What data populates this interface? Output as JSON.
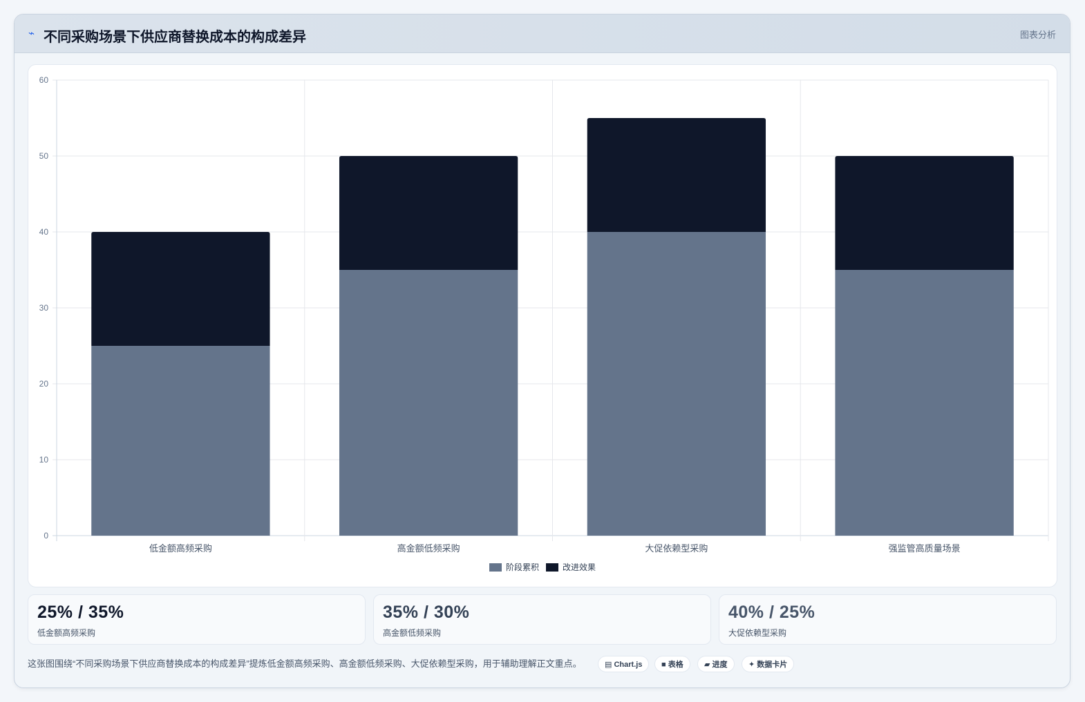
{
  "header": {
    "icon": "chart-line-icon",
    "title": "不同采购场景下供应商替换成本的构成差异",
    "tag": "图表分析"
  },
  "chart_data": {
    "type": "bar",
    "stacked": true,
    "categories": [
      "低金额高频采购",
      "高金额低频采购",
      "大促依赖型采购",
      "强监管高质量场景"
    ],
    "series": [
      {
        "name": "阶段累积",
        "color": "#64748b",
        "values": [
          25,
          35,
          40,
          35
        ]
      },
      {
        "name": "改进效果",
        "color": "#0f172a",
        "values": [
          15,
          15,
          15,
          15
        ]
      }
    ],
    "ylim": [
      0,
      60
    ],
    "yticks": [
      0,
      10,
      20,
      30,
      40,
      50,
      60
    ],
    "grid": true,
    "legend": "bottom"
  },
  "stats": [
    {
      "value": "25% / 35%",
      "label": "低金额高频采购",
      "color": "#0f172a"
    },
    {
      "value": "35% / 30%",
      "label": "高金额低频采购",
      "color": "#334155"
    },
    {
      "value": "40% / 25%",
      "label": "大促依赖型采购",
      "color": "#475569"
    }
  ],
  "footer": {
    "text": "这张图围绕“不同采购场景下供应商替换成本的构成差异”提炼低金额高频采购、高金额低频采购、大促依赖型采购，用于辅助理解正文重点。",
    "chips": [
      {
        "icon": "chart-icon",
        "glyph": "▤",
        "label": "Chart.js"
      },
      {
        "icon": "table-icon",
        "glyph": "■",
        "label": "表格"
      },
      {
        "icon": "progress-icon",
        "glyph": "▰",
        "label": "进度"
      },
      {
        "icon": "sparkle-icon",
        "glyph": "✦",
        "label": "数据卡片"
      }
    ]
  }
}
